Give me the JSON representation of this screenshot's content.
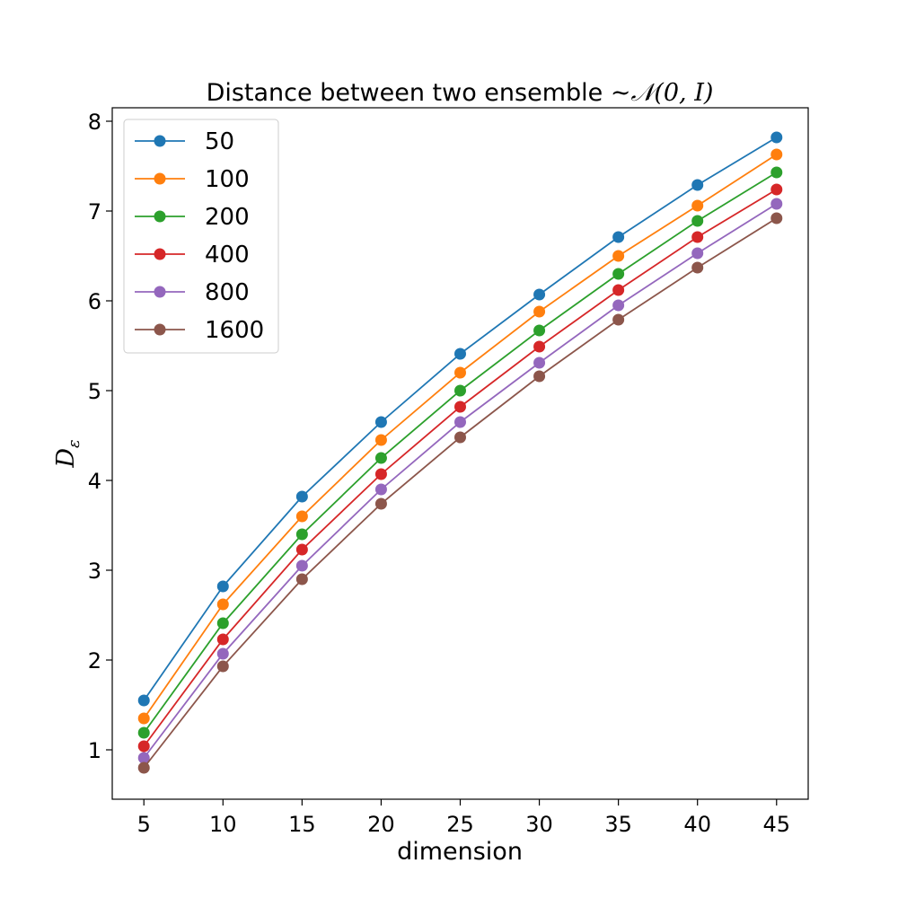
{
  "chart_data": {
    "type": "line",
    "title_prefix": "Distance between two ensemble ",
    "title_math": "~𝒩(0, I)",
    "xlabel": "dimension",
    "ylabel_main": "D",
    "ylabel_sub": "ε",
    "x": [
      5,
      10,
      15,
      20,
      25,
      30,
      35,
      40,
      45
    ],
    "xlim": [
      3,
      47
    ],
    "ylim": [
      0.45,
      8.15
    ],
    "xticks": [
      5,
      10,
      15,
      20,
      25,
      30,
      35,
      40,
      45
    ],
    "yticks": [
      1,
      2,
      3,
      4,
      5,
      6,
      7,
      8
    ],
    "grid": false,
    "legend_position": "upper-left",
    "series": [
      {
        "name": "50",
        "color": "#1f77b4",
        "values": [
          1.55,
          2.82,
          3.82,
          4.65,
          5.41,
          6.07,
          6.71,
          7.29,
          7.82
        ]
      },
      {
        "name": "100",
        "color": "#ff7f0e",
        "values": [
          1.35,
          2.62,
          3.6,
          4.45,
          5.2,
          5.88,
          6.5,
          7.06,
          7.63
        ]
      },
      {
        "name": "200",
        "color": "#2ca02c",
        "values": [
          1.19,
          2.41,
          3.4,
          4.25,
          5.0,
          5.67,
          6.3,
          6.89,
          7.43
        ]
      },
      {
        "name": "400",
        "color": "#d62728",
        "values": [
          1.04,
          2.23,
          3.23,
          4.07,
          4.82,
          5.49,
          6.12,
          6.71,
          7.24
        ]
      },
      {
        "name": "800",
        "color": "#9467bd",
        "values": [
          0.91,
          2.07,
          3.05,
          3.9,
          4.65,
          5.31,
          5.95,
          6.53,
          7.08
        ]
      },
      {
        "name": "1600",
        "color": "#8c564b",
        "values": [
          0.8,
          1.93,
          2.9,
          3.74,
          4.48,
          5.16,
          5.79,
          6.37,
          6.92
        ]
      }
    ]
  }
}
